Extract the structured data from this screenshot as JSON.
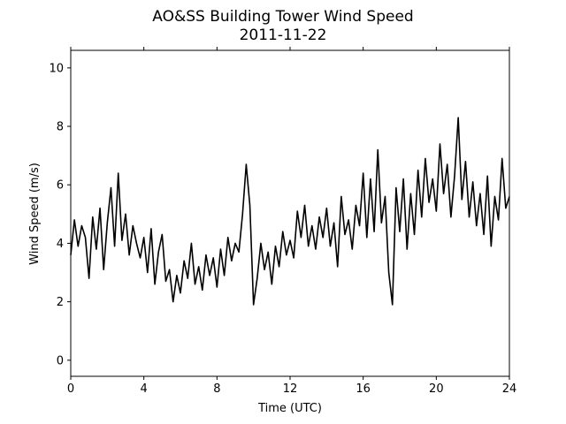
{
  "chart_data": {
    "type": "line",
    "title": "AO&SS Building Tower Wind Speed",
    "subtitle": "2011-11-22",
    "x_label": "Time (UTC)",
    "y_label": "Wind Speed (m/s)",
    "x": [
      0,
      0.2,
      0.4,
      0.6,
      0.8,
      1,
      1.2,
      1.4,
      1.6,
      1.8,
      2,
      2.2,
      2.4,
      2.6,
      2.8,
      3,
      3.2,
      3.4,
      3.6,
      3.8,
      4,
      4.2,
      4.4,
      4.6,
      4.8,
      5,
      5.2,
      5.4,
      5.6,
      5.8,
      6,
      6.2,
      6.4,
      6.6,
      6.8,
      7,
      7.2,
      7.4,
      7.6,
      7.8,
      8,
      8.2,
      8.4,
      8.6,
      8.8,
      9,
      9.2,
      9.4,
      9.6,
      9.8,
      10,
      10.2,
      10.4,
      10.6,
      10.8,
      11,
      11.2,
      11.4,
      11.6,
      11.8,
      12,
      12.2,
      12.4,
      12.6,
      12.8,
      13,
      13.2,
      13.4,
      13.6,
      13.8,
      14,
      14.2,
      14.4,
      14.6,
      14.8,
      15,
      15.2,
      15.4,
      15.6,
      15.8,
      16,
      16.2,
      16.4,
      16.6,
      16.8,
      17,
      17.2,
      17.4,
      17.6,
      17.8,
      18,
      18.2,
      18.4,
      18.6,
      18.8,
      19,
      19.2,
      19.4,
      19.6,
      19.8,
      20,
      20.2,
      20.4,
      20.6,
      20.8,
      21,
      21.2,
      21.4,
      21.6,
      21.8,
      22,
      22.2,
      22.4,
      22.6,
      22.8,
      23,
      23.2,
      23.4,
      23.6,
      23.8,
      24
    ],
    "series": [
      {
        "name": "Wind Speed",
        "color": "#000000",
        "values": [
          3.6,
          4.8,
          3.9,
          4.6,
          4.2,
          2.8,
          4.9,
          3.8,
          5.2,
          3.1,
          4.7,
          5.9,
          3.9,
          6.4,
          4.1,
          5.0,
          3.6,
          4.6,
          4.0,
          3.5,
          4.2,
          3.0,
          4.5,
          2.6,
          3.7,
          4.3,
          2.7,
          3.1,
          2.0,
          2.9,
          2.3,
          3.4,
          2.8,
          4.0,
          2.6,
          3.2,
          2.4,
          3.6,
          2.9,
          3.5,
          2.5,
          3.8,
          2.9,
          4.2,
          3.4,
          4.0,
          3.7,
          5.0,
          6.7,
          5.3,
          1.9,
          2.8,
          4.0,
          3.1,
          3.7,
          2.6,
          3.9,
          3.2,
          4.4,
          3.6,
          4.1,
          3.5,
          5.1,
          4.2,
          5.3,
          3.9,
          4.6,
          3.8,
          4.9,
          4.2,
          5.2,
          3.9,
          4.7,
          3.2,
          5.6,
          4.3,
          4.8,
          3.8,
          5.3,
          4.6,
          6.4,
          4.2,
          6.2,
          4.4,
          7.2,
          4.7,
          5.6,
          3.0,
          1.9,
          5.9,
          4.4,
          6.2,
          3.8,
          5.7,
          4.3,
          6.5,
          4.9,
          6.9,
          5.4,
          6.2,
          5.1,
          7.4,
          5.7,
          6.7,
          4.9,
          6.3,
          8.3,
          5.5,
          6.8,
          4.9,
          6.1,
          4.6,
          5.7,
          4.3,
          6.3,
          3.9,
          5.6,
          4.8,
          6.9,
          5.2,
          5.6
        ]
      }
    ],
    "xlim": [
      0,
      24
    ],
    "xticks": [
      0,
      4,
      8,
      12,
      16,
      20,
      24
    ],
    "ylim": [
      -0.55,
      10.6
    ],
    "yticks": [
      0,
      2,
      4,
      6,
      8,
      10
    ],
    "grid": false
  }
}
